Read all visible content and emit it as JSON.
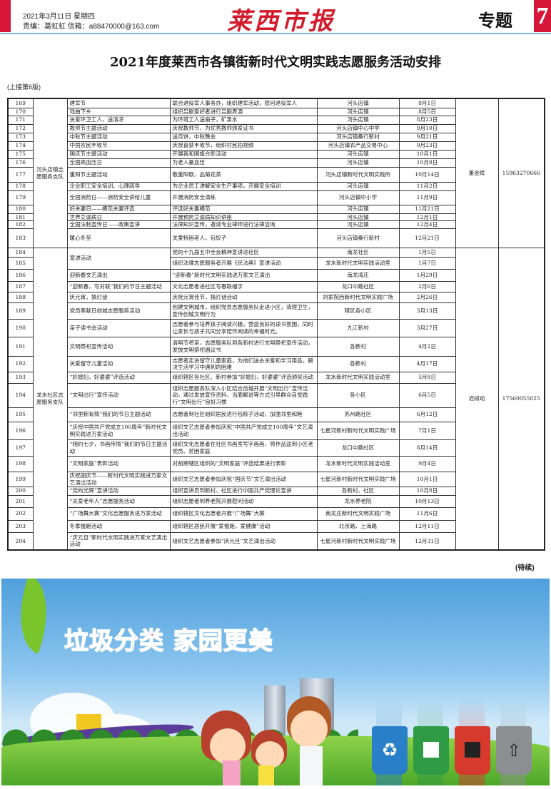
{
  "header": {
    "date": "2021年3月11日  星期四",
    "editor": "责编：葛虹虹   信箱：a88470000@163.com",
    "masthead": "莱西市报",
    "section": "专题",
    "page_number": "7"
  },
  "title": "2021年度莱西市各镇街新时代文明实践志愿服务活动安排",
  "continued_from": "(上接第6版)",
  "continued_note": "(待续)",
  "groups": [
    {
      "team": "河头店镇志愿服务支队",
      "contact": "董金辉",
      "phone": "15963270666",
      "rows": [
        {
          "no": "169",
          "name": "建军节",
          "content": "联合退役军人事务办，组织建军活动，慰问退役军人",
          "place": "河头店镇",
          "date": "8月1日"
        },
        {
          "no": "170",
          "name": "戏曲下乡",
          "content": "组织吕剧爱好者进行吕剧表演",
          "place": "河头店镇",
          "date": "8月5日"
        },
        {
          "no": "171",
          "name": "关爱环卫工人，送清凉",
          "content": "为环境工人送扇子，矿泉水",
          "place": "河头店镇",
          "date": "8月23日"
        },
        {
          "no": "172",
          "name": "教师节主题活动",
          "content": "庆祝教师节，为优秀教师颁发证书",
          "place": "河头店镇中心中学",
          "date": "9月10日"
        },
        {
          "no": "173",
          "name": "中秋节主题活动",
          "content": "送月饼，中秋晚会",
          "place": "河头店镇桑行新村",
          "date": "9月21日"
        },
        {
          "no": "174",
          "name": "中国农民丰收节",
          "content": "庆祝喜获丰收节，组织村民拍视频",
          "place": "河头店镇农产品交易中心",
          "date": "9月23日"
        },
        {
          "no": "175",
          "name": "国庆节主题活动",
          "content": "开展我和国旗合影活动",
          "place": "河头店镇",
          "date": "10月1日"
        },
        {
          "no": "176",
          "name": "全国高血压日",
          "content": "为老人量血压",
          "place": "河头店镇",
          "date": "10月8日"
        },
        {
          "no": "177",
          "name": "重阳节主题活动",
          "content": "敬重阳糕，品菊花茶",
          "place": "河头店镇新时代文明实践所",
          "date": "10月14日"
        },
        {
          "no": "178",
          "name": "企业职工安全培训、心理疏导",
          "content": "为企业员工讲解安全生产事项，开展安全培训",
          "place": "河头店镇",
          "date": "11月2日"
        },
        {
          "no": "179",
          "name": "全国消防日——消防安全讲给儿童",
          "content": "开展消防安全演练",
          "place": "河头店镇中小学",
          "date": "11月9日"
        },
        {
          "no": "180",
          "name": "好夫妻日——模范夫妻评选",
          "content": "评选好夫妻模范",
          "place": "河头店镇",
          "date": "11月21日"
        },
        {
          "no": "181",
          "name": "世界艾滋病日",
          "content": "开展预防艾滋病知识讲座",
          "place": "河头店镇",
          "date": "12月1日"
        },
        {
          "no": "182",
          "name": "全国法制宣传日——政策宣讲",
          "content": "法律知识宣传，邀请专业律师进行法律咨询",
          "place": "河头店镇",
          "date": "12月4日"
        },
        {
          "no": "183",
          "name": "暖心冬至",
          "content": "关爱特困老人，包饺子",
          "place": "河头店镇桑行新村",
          "date": "12月21日"
        }
      ]
    },
    {
      "team": "龙水社区志愿服务支队",
      "contact": "迟树动",
      "phone": "17560055025",
      "rows": [
        {
          "no": "184",
          "name": "宣讲活动",
          "content": "党的十九届五中全会精神宣讲进社区",
          "place": "南龙社区",
          "date": "1月5日"
        },
        {
          "no": "185",
          "name": "",
          "content": "组织法律志愿服务者开展《民法典》宣讲活动",
          "place": "龙水新时代文明实践活动室",
          "date": "1月7日"
        },
        {
          "no": "186",
          "name": "迎新春文艺演出",
          "content": "“迎新春”新时代文明实践进万家文艺演出",
          "place": "南龙湾庄",
          "date": "1月29日"
        },
        {
          "no": "187",
          "name": "“迎新春，写对联”我们的节日主题活动",
          "content": "文化志愿者进社区写春联福字",
          "place": "龙口中路社区",
          "date": "2月6日"
        },
        {
          "no": "188",
          "name": "庆元宵，猜灯谜",
          "content": "庆祝元宵佳节，猜灯谜活动",
          "place": "刘家院西新时代文明实践广场",
          "date": "2月26日"
        },
        {
          "no": "189",
          "name": "党员奉献日创城志愿服务活动",
          "content": "创建文明城市，组织党员志愿服务队走进小区，清理卫生，宣传创城文明行为",
          "place": "辖区各小区",
          "date": "3月13日"
        },
        {
          "no": "190",
          "name": "亲子读书会活动",
          "content": "志愿者参与培养孩子阅读兴趣，营造良好的读书氛围，同时让家长与孩子共同分享陪伴阅读的幸福时光。",
          "place": "九江新村",
          "date": "3月27日"
        },
        {
          "no": "191",
          "name": "文明祭祀宣传活动",
          "content": "清明节将至，志愿服务队到各新村进行文明祭祀宣传活动，发放文明祭祀倡议书",
          "place": "各新村",
          "date": "4月2日"
        },
        {
          "no": "192",
          "name": "关爱留守儿童活动",
          "content": "志愿者走进留守儿童家庭，为他们送去关爱和学习用品，解决生活学习中遇到的困难",
          "place": "各新村",
          "date": "4月17日"
        },
        {
          "no": "193",
          "name": "“好媳妇，好婆婆”评选活动",
          "content": "组织辖区各社区、新村参加“好媳妇，好婆婆”评选颁奖活动",
          "place": "龙水新时代文明实践活动室",
          "date": "5月8日"
        },
        {
          "no": "194",
          "name": "“文明出行”宣传活动",
          "content": "组织志愿服务队深入小区结合创城开展“文明出行”宣传活动，通过发放宣传资料、当面解说等方式引导群众自觉践行“文明出行”良好习惯",
          "place": "各小区",
          "date": "6月5日"
        },
        {
          "no": "195",
          "name": "“邻里粽有情”我们的节日主题活动",
          "content": "志愿者到社区组织居民进行包粽子活动，加强邻里和睦",
          "place": "苏州路社区",
          "date": "6月12日"
        },
        {
          "no": "196",
          "name": "“庆祝中国共产党成立100周年”新时代文明实践进万家活动",
          "content": "组织文艺志愿者参加庆祝“中国共产党成立100周年”文艺演出活动",
          "place": "七星河新村新时代文明实践广场",
          "date": "7月1日"
        },
        {
          "no": "197",
          "name": "“相约七夕，书画传情”我们的节日主题活动",
          "content": "组织文化志愿者在社区书画室写字画画，将作品送到小区老党员、贫困家庭",
          "place": "龙口中路社区",
          "date": "8月14日"
        },
        {
          "no": "198",
          "name": "“文明家庭”表彰活动",
          "content": "对前期辖区组织的“文明家庭”评选结果进行表彰",
          "place": "龙水新时代文明实践活动室",
          "date": "9月4日"
        },
        {
          "no": "199",
          "name": "庆祝国庆节——新时代文明实践进万家文艺演出活动",
          "content": "组织文艺志愿者参加庆祝“国庆节”文艺演出活动",
          "place": "七星河新村新时代文明实践广场",
          "date": "10月1日"
        },
        {
          "no": "200",
          "name": "“党的光辉”宣讲活动",
          "content": "组织宣讲员到新村、社区进行中国共产党理论宣讲",
          "place": "各新村、社区",
          "date": "10月8日"
        },
        {
          "no": "201",
          "name": "“关爱老年人”志愿服务活动",
          "content": "组织志愿者到养老院开展慰问活动",
          "place": "龙水养老院",
          "date": "10月13日"
        },
        {
          "no": "202",
          "name": "“广场舞大赛”文化志愿服务进万家活动",
          "content": "组织辖区文化志愿者开展“广场舞”大赛",
          "place": "南龙庄新时代文明实践广场",
          "date": "11月6日"
        },
        {
          "no": "203",
          "name": "冬季慢跑活动",
          "content": "组织辖区居民开展“爱慢跑，爱健康”活动",
          "place": "北京路、上海路",
          "date": "12月11日"
        },
        {
          "no": "204",
          "name": "“庆元旦”新时代文明实践进万家文艺演出活动",
          "content": "组织文艺志愿者参加“庆元旦”文艺演出活动",
          "place": "七星河新村新时代文明实践广场",
          "date": "12月31日"
        }
      ]
    }
  ],
  "banner": {
    "slogan": "垃圾分类  家园更美",
    "icons": [
      "leaf-icon",
      "recycle-bin-icon",
      "kitchen-waste-bin-icon",
      "hazardous-waste-bin-icon",
      "other-waste-bin-icon"
    ],
    "colors": {
      "sky": "#4f9fdc",
      "slogan": "#e0187c",
      "grass": "#6cbf35",
      "bins": [
        "#2a7fc9",
        "#2f9c45",
        "#d63a2c",
        "#8c8f92"
      ]
    }
  }
}
